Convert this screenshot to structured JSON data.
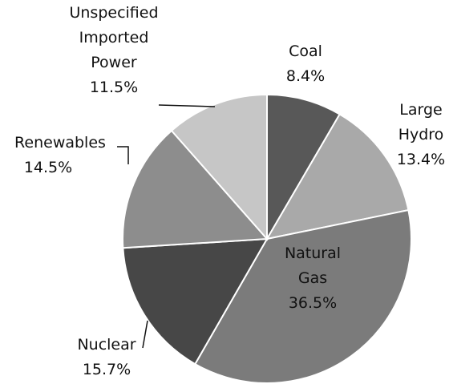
{
  "chart_data": {
    "type": "pie",
    "categories": [
      "Coal",
      "Large Hydro",
      "Natural Gas",
      "Nuclear",
      "Renewables",
      "Unspecified Imported Power"
    ],
    "values": [
      8.4,
      13.4,
      36.5,
      15.7,
      14.5,
      11.5
    ],
    "value_labels": [
      "8.4%",
      "13.4%",
      "36.5%",
      "15.7%",
      "14.5%",
      "11.5%"
    ],
    "colors": [
      "#585858",
      "#a9a9a9",
      "#7b7b7b",
      "#474747",
      "#8d8d8d",
      "#c6c6c6"
    ]
  }
}
